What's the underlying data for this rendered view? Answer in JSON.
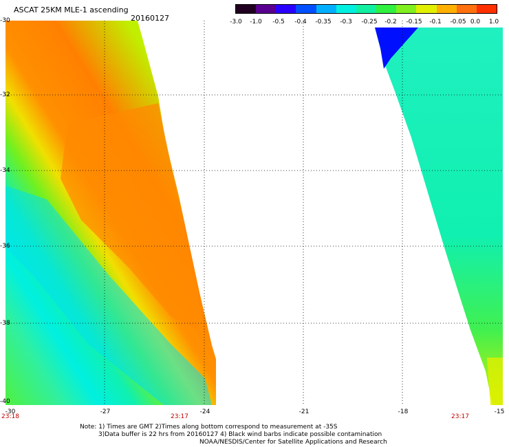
{
  "header": {
    "title": "ASCAT 25KM MLE-1 ascending",
    "date": "20160127"
  },
  "colorbar": {
    "ticks": [
      "-3.0",
      "-1.0",
      "-0.5",
      "-0.4",
      "-0.35",
      "-0.3",
      "-0.25",
      "-0.2",
      "-0.15",
      "-0.1",
      "-0.05",
      "0.0",
      "1.0"
    ],
    "colors": [
      "#200020",
      "#5a0090",
      "#2a00ff",
      "#0050ff",
      "#00b0ff",
      "#00f0e0",
      "#10f0a0",
      "#30f040",
      "#80f020",
      "#e0f000",
      "#ffb000",
      "#ff7010",
      "#ff3000"
    ]
  },
  "axes": {
    "lat_labels": [
      "-30",
      "-32",
      "-34",
      "-36",
      "-38",
      "-40"
    ],
    "lon_labels": [
      "-30",
      "-27",
      "-24",
      "-21",
      "-18",
      "-15"
    ]
  },
  "times": {
    "left": "23:18",
    "middle": "23:17",
    "right": "23:17"
  },
  "notes": {
    "line1": "Note: 1) Times are GMT 2)Times along bottom correspond to measurement at -35S",
    "line2": "3)Data buffer is 22 hrs from 20160127 4) Black wind barbs indicate possible contamination",
    "line3": "NOAA/NESDIS/Center for Satellite Applications and Research"
  }
}
